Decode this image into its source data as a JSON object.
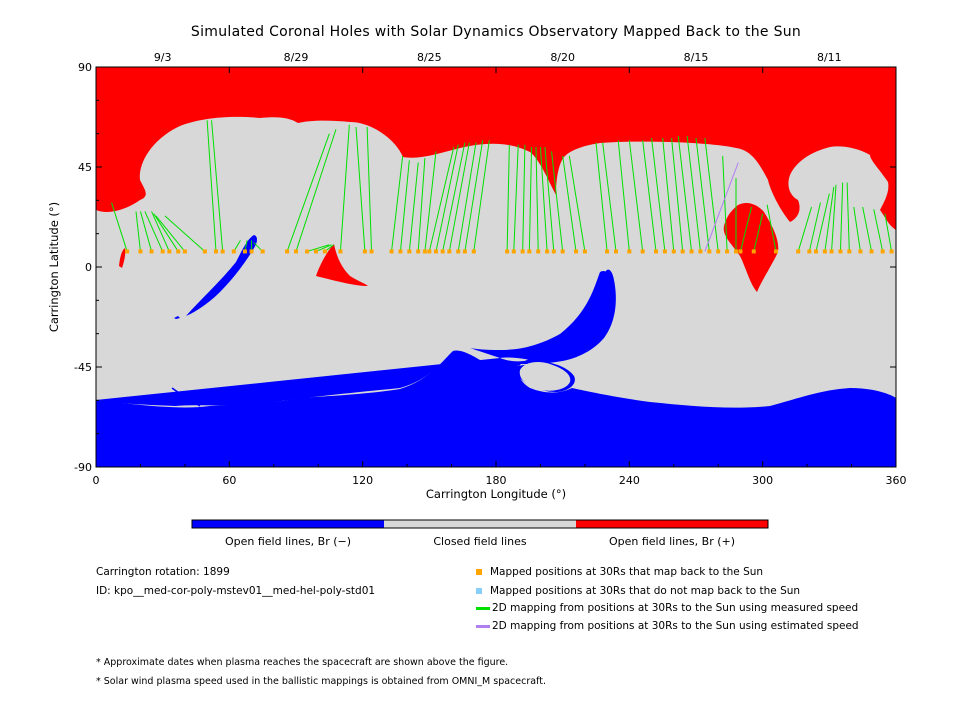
{
  "chart_data": {
    "type": "map",
    "title": "Simulated Coronal Holes with Solar Dynamics Observatory Mapped Back to the Sun",
    "xlabel": "Carrington Longitude (°)",
    "ylabel": "Carrington Latitude (°)",
    "xlim": [
      0,
      360
    ],
    "ylim": [
      -90,
      90
    ],
    "x_ticks": [
      0,
      60,
      120,
      180,
      240,
      300,
      360
    ],
    "y_ticks": [
      90,
      45,
      0,
      -45,
      -90
    ],
    "top_date_ticks": [
      {
        "label": "9/3",
        "lon": 30
      },
      {
        "label": "8/29",
        "lon": 90
      },
      {
        "label": "8/25",
        "lon": 150
      },
      {
        "label": "8/20",
        "lon": 210
      },
      {
        "label": "8/15",
        "lon": 270
      },
      {
        "label": "8/11",
        "lon": 330
      }
    ],
    "colors": {
      "open_negative": "#0000ff",
      "closed": "#d8d8d8",
      "open_positive": "#ff0000",
      "mapped_point": "#ffa500",
      "unmapped_point": "#87cefa",
      "measured_line": "#00e000",
      "estimated_line": "#b080f0"
    },
    "colorbar": [
      {
        "label": "Open field lines, Br (−)",
        "color": "#0000ff"
      },
      {
        "label": "Closed field lines",
        "color": "#d8d8d8"
      },
      {
        "label": "Open field lines, Br (+)",
        "color": "#ff0000"
      }
    ],
    "footpoint_latitude": 7,
    "mappings": [
      {
        "lon": 14,
        "src_lon": 7,
        "src_lat": 29
      },
      {
        "lon": 20,
        "src_lon": 18,
        "src_lat": 25
      },
      {
        "lon": 25,
        "src_lon": 20,
        "src_lat": 25
      },
      {
        "lon": 30,
        "src_lon": 22,
        "src_lat": 25
      },
      {
        "lon": 33,
        "src_lon": 25,
        "src_lat": 25
      },
      {
        "lon": 37,
        "src_lon": 26,
        "src_lat": 24
      },
      {
        "lon": 40,
        "src_lon": 27,
        "src_lat": 23
      },
      {
        "lon": 49,
        "src_lon": 31,
        "src_lat": 23
      },
      {
        "lon": 54,
        "src_lon": 50,
        "src_lat": 66
      },
      {
        "lon": 57,
        "src_lon": 52,
        "src_lat": 66
      },
      {
        "lon": 62,
        "src_lon": 65,
        "src_lat": 12
      },
      {
        "lon": 67,
        "src_lon": 68,
        "src_lat": 12
      },
      {
        "lon": 70,
        "src_lon": 70,
        "src_lat": 12
      },
      {
        "lon": 75,
        "src_lon": 71,
        "src_lat": 11
      },
      {
        "lon": 86,
        "src_lon": 105,
        "src_lat": 60
      },
      {
        "lon": 90,
        "src_lon": 108,
        "src_lat": 62
      },
      {
        "lon": 95,
        "src_lon": 105,
        "src_lat": 10
      },
      {
        "lon": 99,
        "src_lon": 106,
        "src_lat": 10
      },
      {
        "lon": 103,
        "src_lon": 107,
        "src_lat": 10
      },
      {
        "lon": 110,
        "src_lon": 114,
        "src_lat": 64
      },
      {
        "lon": 121,
        "src_lon": 117,
        "src_lat": 63
      },
      {
        "lon": 124,
        "src_lon": 122,
        "src_lat": 63
      },
      {
        "lon": 133,
        "src_lon": 138,
        "src_lat": 50
      },
      {
        "lon": 137,
        "src_lon": 141,
        "src_lat": 48
      },
      {
        "lon": 141,
        "src_lon": 145,
        "src_lat": 47
      },
      {
        "lon": 145,
        "src_lon": 148,
        "src_lat": 49
      },
      {
        "lon": 148,
        "src_lon": 153,
        "src_lat": 52
      },
      {
        "lon": 150,
        "src_lon": 161,
        "src_lat": 54
      },
      {
        "lon": 153,
        "src_lon": 163,
        "src_lat": 55
      },
      {
        "lon": 156,
        "src_lon": 166,
        "src_lat": 56
      },
      {
        "lon": 159,
        "src_lon": 168,
        "src_lat": 56
      },
      {
        "lon": 163,
        "src_lon": 171,
        "src_lat": 56
      },
      {
        "lon": 166,
        "src_lon": 174,
        "src_lat": 57
      },
      {
        "lon": 170,
        "src_lon": 177,
        "src_lat": 57
      },
      {
        "lon": 185,
        "src_lon": 186,
        "src_lat": 55
      },
      {
        "lon": 188,
        "src_lon": 190,
        "src_lat": 55
      },
      {
        "lon": 192,
        "src_lon": 193,
        "src_lat": 55
      },
      {
        "lon": 195,
        "src_lon": 196,
        "src_lat": 54
      },
      {
        "lon": 199,
        "src_lon": 198,
        "src_lat": 54
      },
      {
        "lon": 203,
        "src_lon": 200,
        "src_lat": 54
      },
      {
        "lon": 206,
        "src_lon": 202,
        "src_lat": 54
      },
      {
        "lon": 210,
        "src_lon": 205,
        "src_lat": 52
      },
      {
        "lon": 216,
        "src_lon": 210,
        "src_lat": 50
      },
      {
        "lon": 220,
        "src_lon": 213,
        "src_lat": 50
      },
      {
        "lon": 230,
        "src_lon": 225,
        "src_lat": 56
      },
      {
        "lon": 234,
        "src_lon": 228,
        "src_lat": 56
      },
      {
        "lon": 240,
        "src_lon": 235,
        "src_lat": 57
      },
      {
        "lon": 246,
        "src_lon": 240,
        "src_lat": 57
      },
      {
        "lon": 252,
        "src_lon": 246,
        "src_lat": 57
      },
      {
        "lon": 256,
        "src_lon": 250,
        "src_lat": 58
      },
      {
        "lon": 260,
        "src_lon": 255,
        "src_lat": 58
      },
      {
        "lon": 264,
        "src_lon": 259,
        "src_lat": 58
      },
      {
        "lon": 268,
        "src_lon": 262,
        "src_lat": 59
      },
      {
        "lon": 272,
        "src_lon": 266,
        "src_lat": 59
      },
      {
        "lon": 276,
        "src_lon": 270,
        "src_lat": 58
      },
      {
        "lon": 280,
        "src_lon": 274,
        "src_lat": 58
      },
      {
        "lon": 284,
        "src_lon": 282,
        "src_lat": 50
      },
      {
        "lon": 288,
        "src_lon": 288,
        "src_lat": 40
      },
      {
        "lon": 290,
        "src_lon": 295,
        "src_lat": 27
      },
      {
        "lon": 296,
        "src_lon": 300,
        "src_lat": 24
      },
      {
        "lon": 306,
        "src_lon": 302,
        "src_lat": 28
      },
      {
        "lon": 316,
        "src_lon": 322,
        "src_lat": 27
      },
      {
        "lon": 321,
        "src_lon": 326,
        "src_lat": 29
      },
      {
        "lon": 324,
        "src_lon": 330,
        "src_lat": 33
      },
      {
        "lon": 328,
        "src_lon": 332,
        "src_lat": 36
      },
      {
        "lon": 331,
        "src_lon": 333,
        "src_lat": 37
      },
      {
        "lon": 335,
        "src_lon": 336,
        "src_lat": 38
      },
      {
        "lon": 339,
        "src_lon": 338,
        "src_lat": 38
      },
      {
        "lon": 344,
        "src_lon": 341,
        "src_lat": 27
      },
      {
        "lon": 349,
        "src_lon": 345,
        "src_lat": 27
      },
      {
        "lon": 354,
        "src_lon": 350,
        "src_lat": 26
      },
      {
        "lon": 358,
        "src_lon": 355,
        "src_lat": 24
      }
    ],
    "estimated_mappings": [
      {
        "lon": 274,
        "src_lon": 289,
        "src_lat": 47
      }
    ]
  },
  "info": {
    "rotation_label": "Carrington rotation: 1899",
    "id_label": "ID: kpo__med-cor-poly-mstev01__med-hel-poly-std01"
  },
  "legend": {
    "mapped": "Mapped positions at 30Rs that map back to the Sun",
    "unmapped": "Mapped positions at 30Rs that do not map back to the Sun",
    "measured": "2D mapping from positions at 30Rs to the Sun using measured speed",
    "estimated": "2D mapping from positions at 30Rs to the Sun using estimated speed"
  },
  "notes": {
    "note1": "* Approximate dates when plasma reaches the spacecraft are shown above the figure.",
    "note2": "* Solar wind plasma speed used in the ballistic mappings is obtained from OMNI_M spacecraft."
  }
}
